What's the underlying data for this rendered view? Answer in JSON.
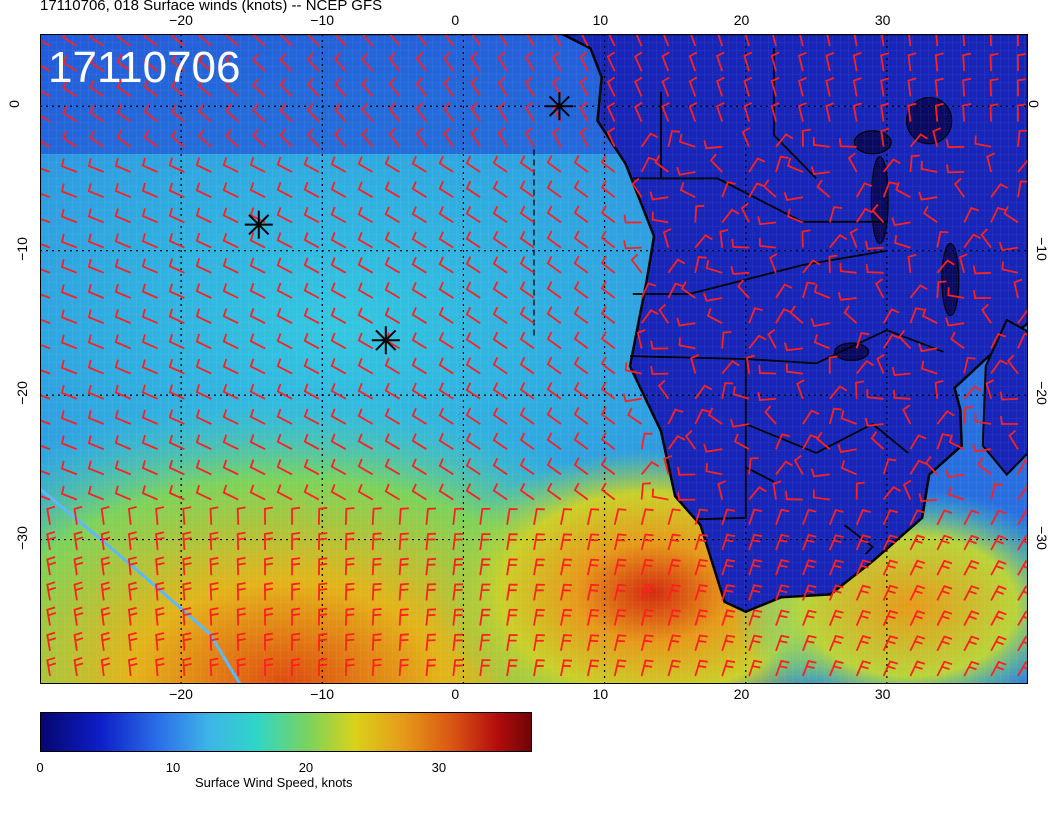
{
  "title": "17110706, 018 Surface winds (knots) -- NCEP GFS",
  "stamp": "17110706",
  "colorbar": {
    "label": "Surface Wind Speed, knots",
    "ticks": [
      "0",
      "10",
      "20",
      "30"
    ],
    "range_knots": [
      0,
      37
    ]
  },
  "axes": {
    "lon_ticks": [
      "−20",
      "−10",
      "0",
      "10",
      "20",
      "30"
    ],
    "lon_values": [
      -20,
      -10,
      0,
      10,
      20,
      30
    ],
    "lat_ticks": [
      "0",
      "−10",
      "−20",
      "−30"
    ],
    "lat_values": [
      0,
      -10,
      -20,
      -30
    ],
    "lon_range": [
      -30,
      40
    ],
    "lat_range": [
      -40,
      5
    ]
  },
  "markers": [
    {
      "name": "storm-marker-1",
      "lon": -14.5,
      "lat": -8.2
    },
    {
      "name": "storm-marker-2",
      "lon": -5.5,
      "lat": -16.2
    },
    {
      "name": "storm-marker-3",
      "lon": 6.8,
      "lat": 0.0
    }
  ],
  "colors": {
    "barb": "#ff2020",
    "coast": "#000000",
    "calm": "#0d1ec7",
    "moderate": "#2fd6c8",
    "strong": "#e69a1a",
    "gale": "#d42a0f"
  }
}
